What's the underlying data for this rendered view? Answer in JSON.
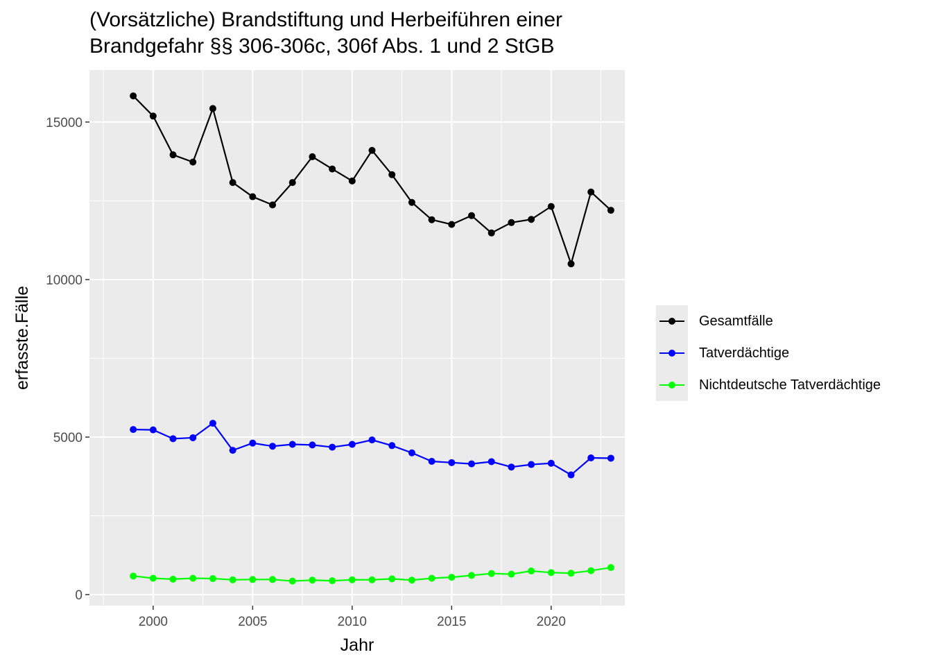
{
  "title_lines": [
    "(Vorsätzliche) Brandstiftung und Herbeiführen einer",
    "Brandgefahr §§ 306-306c, 306f Abs. 1 und 2 StGB"
  ],
  "chart_data": {
    "type": "line",
    "xlabel": "Jahr",
    "ylabel": "erfasste.Fälle",
    "x": [
      1999,
      2000,
      2001,
      2002,
      2003,
      2004,
      2005,
      2006,
      2007,
      2008,
      2009,
      2010,
      2011,
      2012,
      2013,
      2014,
      2015,
      2016,
      2017,
      2018,
      2019,
      2020,
      2021,
      2022,
      2023
    ],
    "xlim": [
      1996.8,
      2023.7
    ],
    "ylim": [
      -350,
      16650
    ],
    "x_ticks": [
      2000,
      2005,
      2010,
      2015,
      2020
    ],
    "x_tick_labels": [
      "2000",
      "2005",
      "2010",
      "2015",
      "2020"
    ],
    "y_ticks": [
      0,
      5000,
      10000,
      15000
    ],
    "y_tick_labels": [
      "0",
      "5000",
      "10000",
      "15000"
    ],
    "grid": true,
    "legend_position": "right",
    "series": [
      {
        "name": "Gesamtfälle",
        "color": "#000000",
        "values": [
          15830,
          15190,
          13960,
          13730,
          15430,
          13080,
          12630,
          12370,
          13080,
          13900,
          13510,
          13130,
          14100,
          13330,
          12450,
          11900,
          11750,
          12030,
          11480,
          11810,
          11910,
          12320,
          10500,
          12780,
          12200
        ]
      },
      {
        "name": "Tatverdächtige",
        "color": "#0000ff",
        "values": [
          5240,
          5230,
          4950,
          4980,
          5440,
          4580,
          4810,
          4710,
          4770,
          4750,
          4680,
          4770,
          4910,
          4730,
          4500,
          4230,
          4190,
          4150,
          4220,
          4050,
          4130,
          4170,
          3800,
          4340,
          4330
        ]
      },
      {
        "name": "Nichtdeutsche Tatverdächtige",
        "color": "#00ff00",
        "values": [
          590,
          520,
          490,
          520,
          510,
          470,
          480,
          480,
          430,
          460,
          440,
          470,
          470,
          500,
          460,
          520,
          550,
          610,
          670,
          650,
          750,
          700,
          680,
          760,
          860
        ]
      }
    ]
  }
}
